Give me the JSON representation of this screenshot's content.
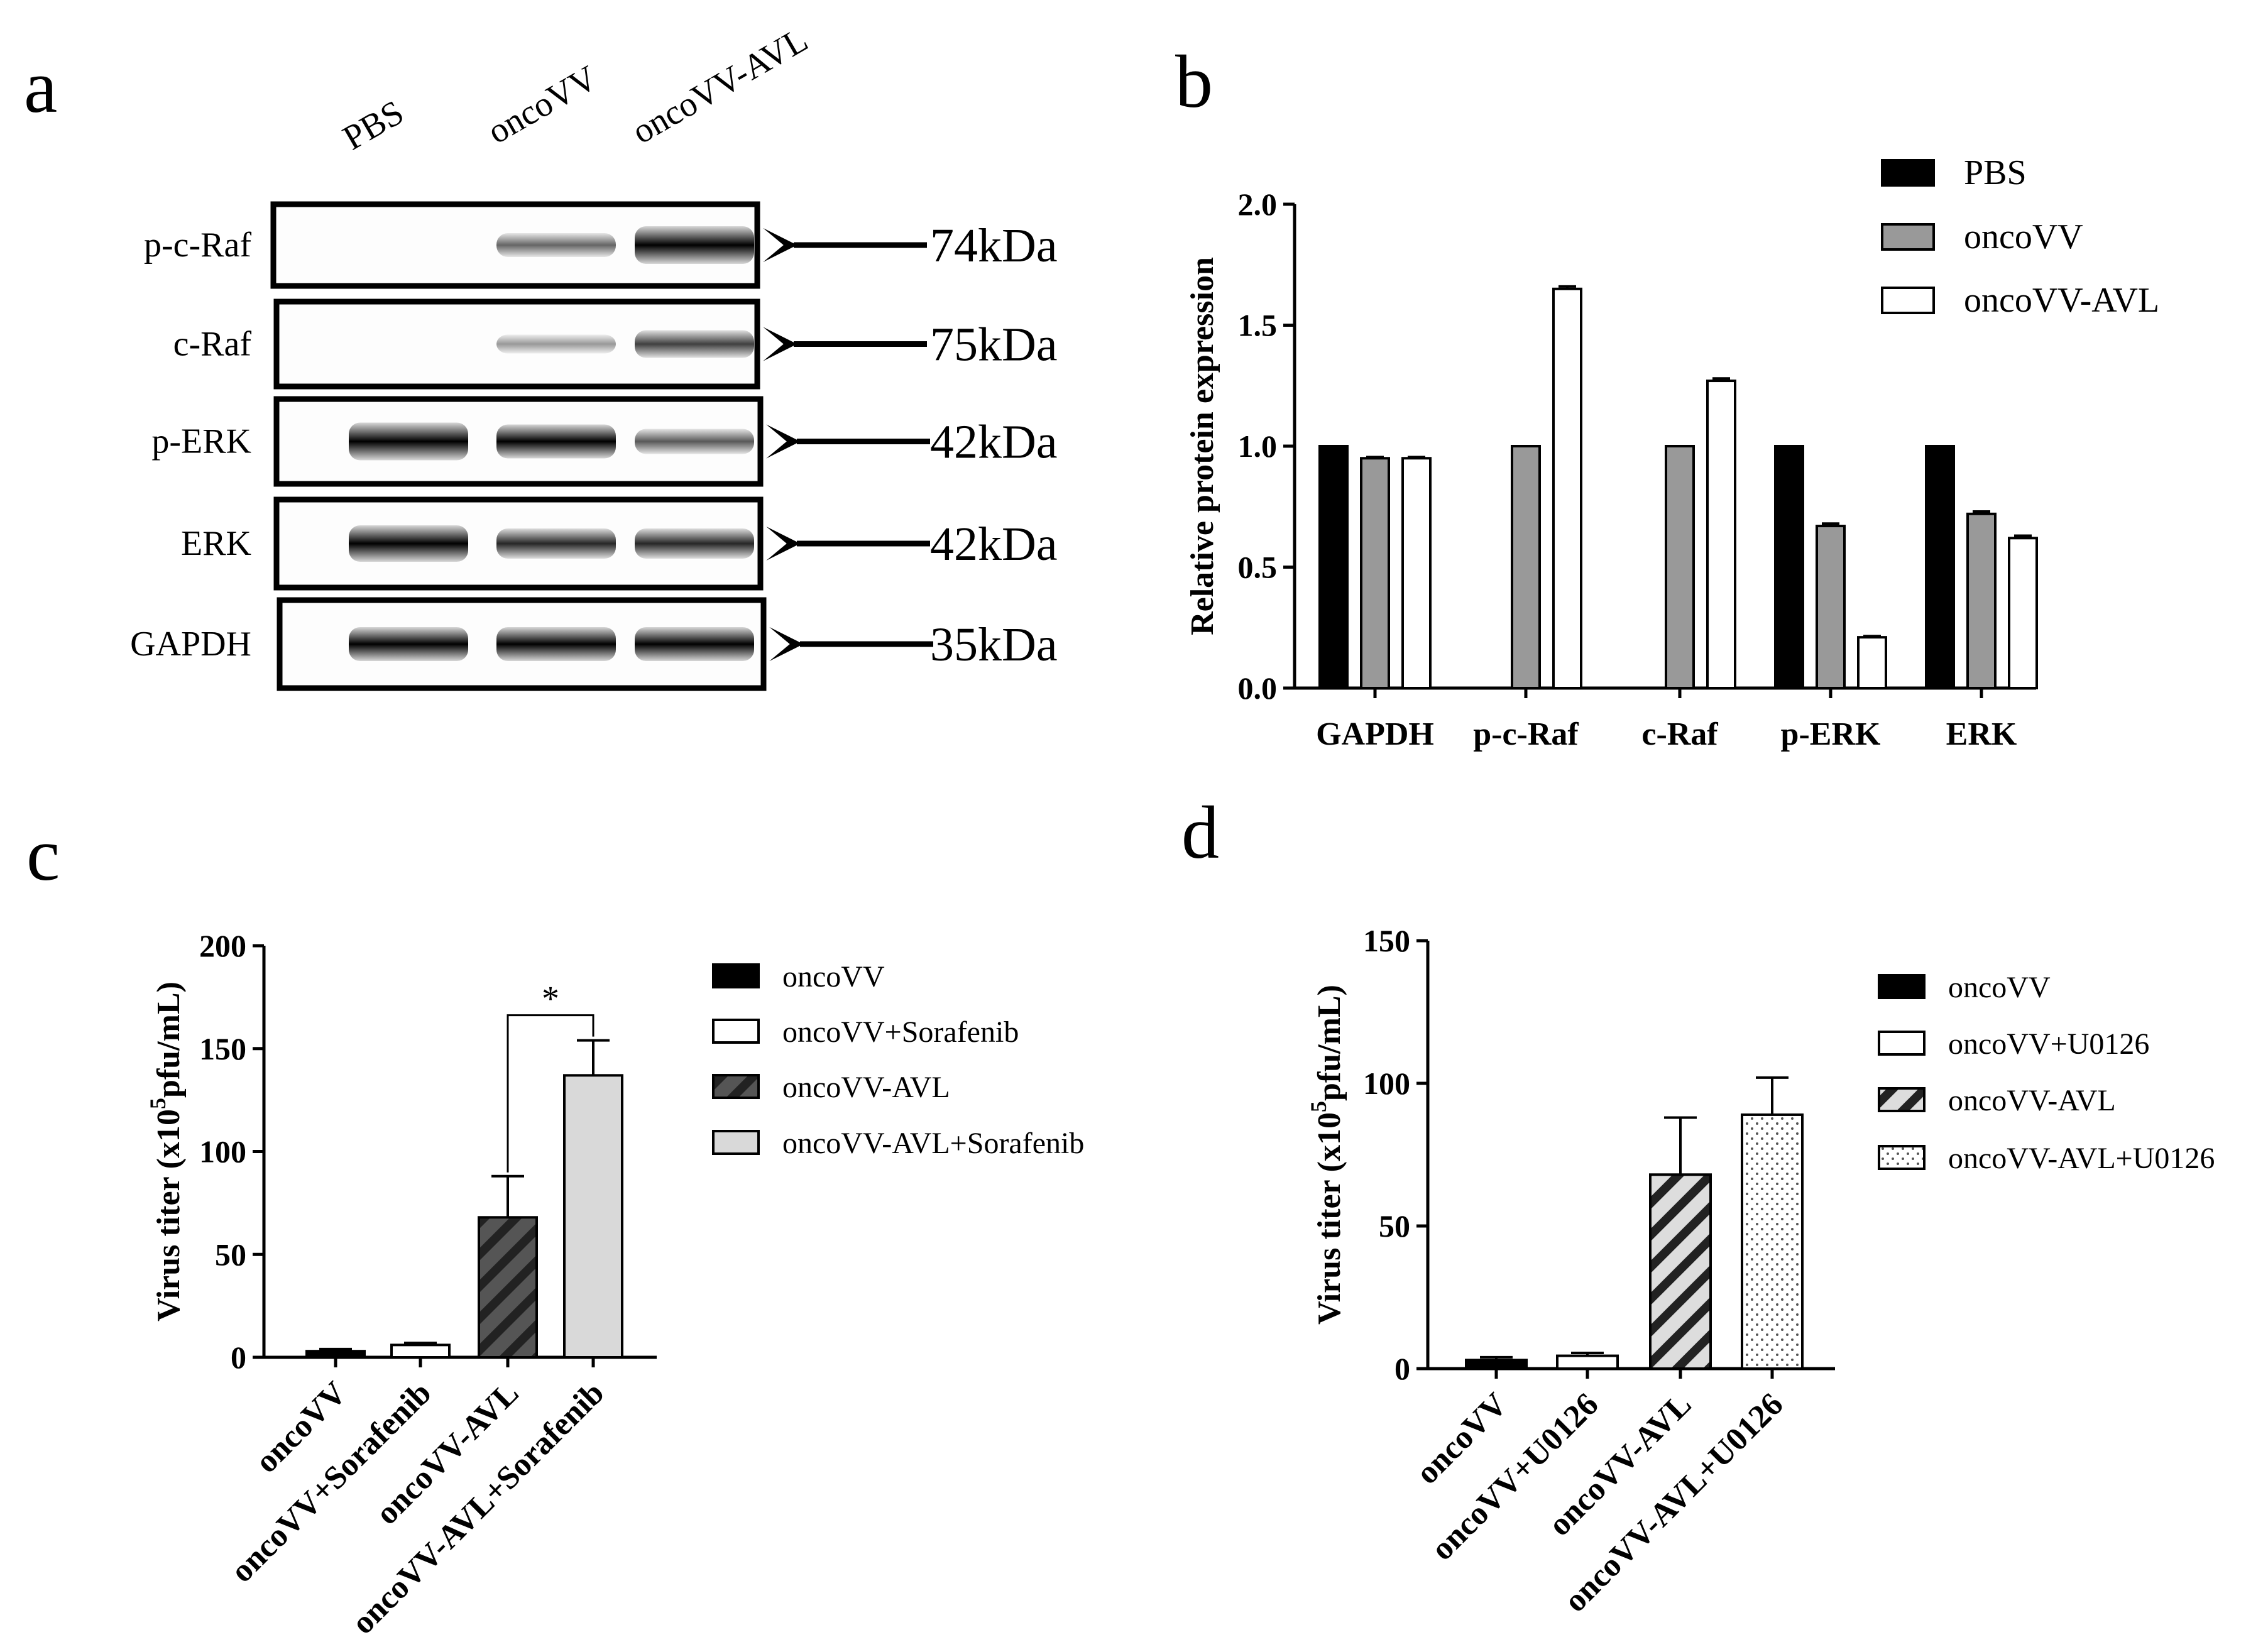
{
  "panels": {
    "a": "a",
    "b": "b",
    "c": "c",
    "d": "d"
  },
  "blot": {
    "lanes": [
      "PBS",
      "oncoVV",
      "oncoVV-AVL"
    ],
    "rows": [
      {
        "protein": "p-c-Raf",
        "kda": "74kDa",
        "bands": [
          0,
          0.45,
          1.0
        ]
      },
      {
        "protein": "c-Raf",
        "kda": "75kDa",
        "bands": [
          0,
          0.25,
          0.6
        ]
      },
      {
        "protein": "p-ERK",
        "kda": "42kDa",
        "bands": [
          1.0,
          0.85,
          0.5
        ]
      },
      {
        "protein": "ERK",
        "kda": "42kDa",
        "bands": [
          0.95,
          0.7,
          0.7
        ]
      },
      {
        "protein": "GAPDH",
        "kda": "35kDa",
        "bands": [
          0.85,
          0.85,
          0.85
        ]
      }
    ]
  },
  "chart_data": [
    {
      "panel": "b",
      "type": "bar",
      "ylabel": "Relative protein expression",
      "ylim": [
        0,
        2.0
      ],
      "yticks": [
        "0.0",
        "0.5",
        "1.0",
        "1.5",
        "2.0"
      ],
      "categories": [
        "GAPDH",
        "p-c-Raf",
        "c-Raf",
        "p-ERK",
        "ERK"
      ],
      "series": [
        {
          "name": "PBS",
          "fill": "#000000",
          "values": [
            1.0,
            0,
            0,
            1.0,
            1.0
          ],
          "errors": [
            0,
            0,
            0,
            0,
            0
          ]
        },
        {
          "name": "oncoVV",
          "fill": "#999999",
          "values": [
            0.95,
            1.0,
            1.0,
            0.67,
            0.72
          ],
          "errors": [
            0.005,
            0,
            0,
            0.01,
            0.01
          ]
        },
        {
          "name": "oncoVV-AVL",
          "fill": "#ffffff",
          "values": [
            0.95,
            1.65,
            1.27,
            0.21,
            0.62
          ],
          "errors": [
            0.005,
            0.01,
            0.01,
            0.005,
            0.01
          ]
        }
      ],
      "legend_position": "top-right"
    },
    {
      "panel": "c",
      "type": "bar",
      "ylabel": "Virus titer (x10^5pfu/mL)",
      "ylim": [
        0,
        200
      ],
      "yticks": [
        "0",
        "50",
        "100",
        "150",
        "200"
      ],
      "categories": [
        "oncoVV",
        "oncoVV+Sorafenib",
        "oncoVV-AVL",
        "oncoVV-AVL+Sorafenib"
      ],
      "values": [
        3,
        6,
        68,
        137
      ],
      "errors": [
        1,
        1,
        20,
        17
      ],
      "patterns": [
        "solid-black",
        "white",
        "hatch-dark",
        "solid-light"
      ],
      "significance": {
        "from": 2,
        "to": 3,
        "label": "*"
      },
      "legend": [
        "oncoVV",
        "oncoVV+Sorafenib",
        "oncoVV-AVL",
        "oncoVV-AVL+Sorafenib"
      ],
      "legend_position": "right"
    },
    {
      "panel": "d",
      "type": "bar",
      "ylabel": "Virus titer (x10^5pfu/mL)",
      "ylim": [
        0,
        150
      ],
      "yticks": [
        "0",
        "50",
        "100",
        "150"
      ],
      "categories": [
        "oncoVV",
        "oncoVV+U0126",
        "oncoVV-AVL",
        "oncoVV-AVL+U0126"
      ],
      "values": [
        3,
        4.5,
        68,
        89
      ],
      "errors": [
        1,
        1,
        20,
        13
      ],
      "patterns": [
        "solid-black",
        "white",
        "hatch-light",
        "dots"
      ],
      "legend": [
        "oncoVV",
        "oncoVV+U0126",
        "oncoVV-AVL",
        "oncoVV-AVL+U0126"
      ],
      "legend_position": "right"
    }
  ]
}
